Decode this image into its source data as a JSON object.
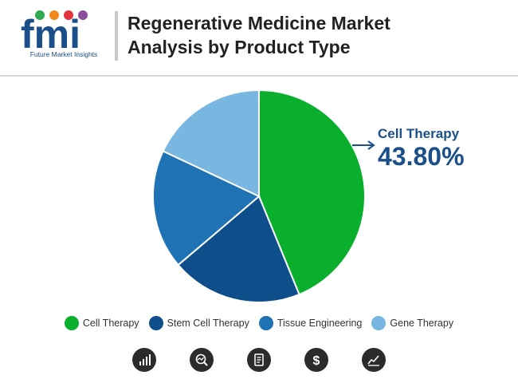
{
  "header": {
    "title_line1": "Regenerative Medicine Market",
    "title_line2": "Analysis by Product Type",
    "logo_text": "fmi",
    "logo_subtitle": "Future Market Insights"
  },
  "callout": {
    "label": "Cell Therapy",
    "value": "43.80%"
  },
  "chart_data": {
    "type": "pie",
    "title": "Regenerative Medicine Market Analysis by Product Type",
    "slices": [
      {
        "name": "Cell Therapy",
        "value": 43.8,
        "color": "#0aaf2e"
      },
      {
        "name": "Stem Cell Therapy",
        "value": 20.0,
        "color": "#0e4f8b"
      },
      {
        "name": "Tissue Engineering",
        "value": 18.2,
        "color": "#1f72b4"
      },
      {
        "name": "Gene Therapy",
        "value": 18.0,
        "color": "#79b7e0"
      }
    ],
    "legend_position": "bottom"
  },
  "legend": [
    {
      "label": "Cell Therapy",
      "color": "#0aaf2e"
    },
    {
      "label": "Stem Cell Therapy",
      "color": "#0e4f8b"
    },
    {
      "label": "Tissue Engineering",
      "color": "#1f72b4"
    },
    {
      "label": "Gene Therapy",
      "color": "#79b7e0"
    }
  ],
  "footer_icons": [
    "bar-chart-icon",
    "magnifier-chart-icon",
    "document-icon",
    "dollar-icon",
    "trend-chart-icon"
  ]
}
